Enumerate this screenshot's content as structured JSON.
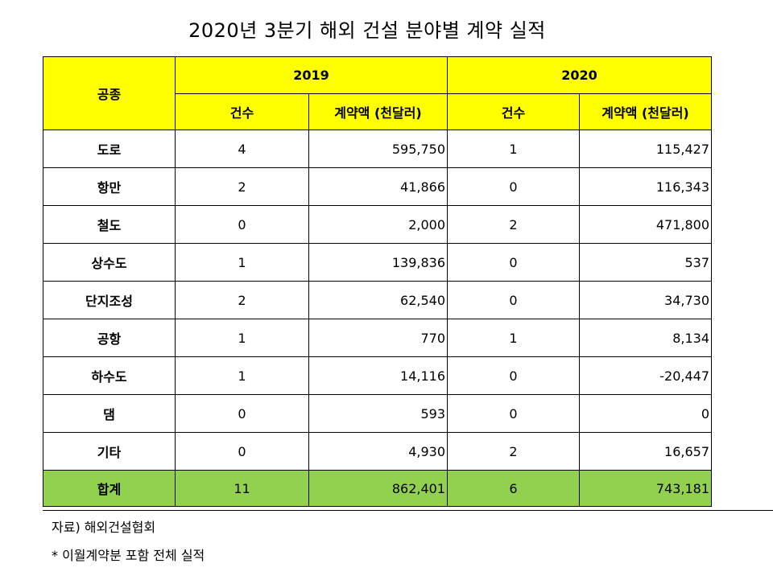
{
  "title": "2020년 3분기 해외 건설 분야별 계약 실적",
  "headers": {
    "category": "공종",
    "year1": "2019",
    "year2": "2020",
    "count": "건수",
    "amount": "계약액 (천달러)"
  },
  "rows": [
    {
      "category": "도로",
      "c2019": "4",
      "a2019": "595,750",
      "c2020": "1",
      "a2020": "115,427"
    },
    {
      "category": "항만",
      "c2019": "2",
      "a2019": "41,866",
      "c2020": "0",
      "a2020": "116,343"
    },
    {
      "category": "철도",
      "c2019": "0",
      "a2019": "2,000",
      "c2020": "2",
      "a2020": "471,800"
    },
    {
      "category": "상수도",
      "c2019": "1",
      "a2019": "139,836",
      "c2020": "0",
      "a2020": "537"
    },
    {
      "category": "단지조성",
      "c2019": "2",
      "a2019": "62,540",
      "c2020": "0",
      "a2020": "34,730"
    },
    {
      "category": "공항",
      "c2019": "1",
      "a2019": "770",
      "c2020": "1",
      "a2020": "8,134"
    },
    {
      "category": "하수도",
      "c2019": "1",
      "a2019": "14,116",
      "c2020": "0",
      "a2020": "-20,447"
    },
    {
      "category": "댐",
      "c2019": "0",
      "a2019": "593",
      "c2020": "0",
      "a2020": "0"
    },
    {
      "category": "기타",
      "c2019": "0",
      "a2019": "4,930",
      "c2020": "2",
      "a2020": "16,657"
    }
  ],
  "total": {
    "category": "합계",
    "c2019": "11",
    "a2019": "862,401",
    "c2020": "6",
    "a2020": "743,181"
  },
  "notes": {
    "source": "자료) 해외건설협회",
    "footnote": "* 이월계약분 포함 전체 실적"
  },
  "colors": {
    "header_bg": "#ffff00",
    "total_bg": "#92d050"
  }
}
